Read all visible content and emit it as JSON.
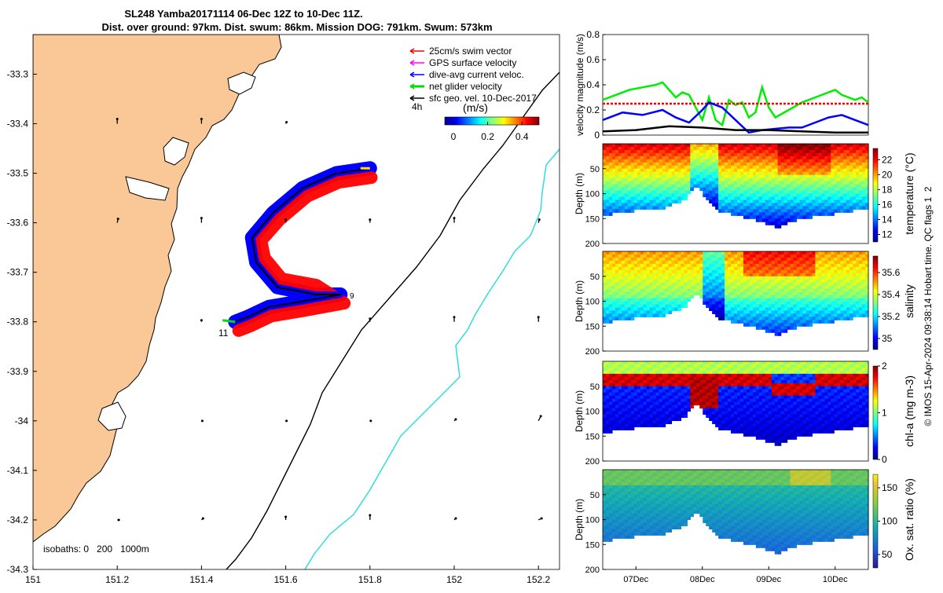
{
  "title": {
    "line1": "SL248 Yamba20171114 06-Dec 12Z to 10-Dec 11Z.",
    "line2": "Dist. over ground: 97km. Dist. swum: 86km. Mission DOG: 791km. Swum: 573km"
  },
  "map": {
    "xlim": [
      151.0,
      152.25
    ],
    "ylim": [
      -34.3,
      -33.22
    ],
    "x_ticks": [
      "151",
      "151.2",
      "151.4",
      "151.6",
      "151.8",
      "152",
      "152.2"
    ],
    "x_tick_values": [
      151.0,
      151.2,
      151.4,
      151.6,
      151.8,
      152.0,
      152.2
    ],
    "y_ticks": [
      "-33.3",
      "-33.4",
      "-33.5",
      "-33.6",
      "-33.7",
      "-33.8",
      "-33.9",
      "-34",
      "-34.1",
      "-34.2",
      "-34.3"
    ],
    "y_tick_values": [
      -33.3,
      -33.4,
      -33.5,
      -33.6,
      -33.7,
      -33.8,
      -33.9,
      -34.0,
      -34.1,
      -34.2,
      -34.3
    ],
    "colors": {
      "land": "#f9c896",
      "isobath_200": "#000000",
      "isobath_1000": "#22dddd",
      "swim": "#ff0000",
      "gps": "#ff00ff",
      "current": "#0000ff",
      "net": "#00dd00",
      "geo": "#000000"
    },
    "legend": [
      {
        "label": "25cm/s swim vector",
        "color": "#ff0000"
      },
      {
        "label": "GPS surface velocity",
        "color": "#ff00ff"
      },
      {
        "label": "dive-avg current veloc.",
        "color": "#0000ff"
      },
      {
        "label": "net glider velocity",
        "color": "#00dd00"
      },
      {
        "label": "sfc geo. vel. 10-Dec-2017",
        "color": "#000000"
      }
    ],
    "colorbar": {
      "label": "(m/s)",
      "ticks": [
        "0",
        "0.2",
        "0.4"
      ],
      "tick_values": [
        0,
        0.2,
        0.4
      ],
      "range": [
        -0.05,
        0.5
      ]
    },
    "speed_label": "4h",
    "isobath_text": "isobaths: 0   200   1000m",
    "track_labels": {
      "start": "11",
      "end": "9"
    },
    "track": [
      [
        151.8,
        -33.49
      ],
      [
        151.72,
        -33.5
      ],
      [
        151.64,
        -33.53
      ],
      [
        151.57,
        -33.58
      ],
      [
        151.52,
        -33.63
      ],
      [
        151.53,
        -33.68
      ],
      [
        151.58,
        -33.73
      ],
      [
        151.67,
        -33.745
      ],
      [
        151.73,
        -33.745
      ],
      [
        151.63,
        -33.76
      ],
      [
        151.56,
        -33.77
      ],
      [
        151.51,
        -33.79
      ],
      [
        151.48,
        -33.8
      ]
    ],
    "geo_vectors": [
      {
        "lon": 151.2,
        "lat": -33.4,
        "u": 0.0,
        "v": 0.3
      },
      {
        "lon": 151.4,
        "lat": -33.4,
        "u": 0.0,
        "v": 0.3
      },
      {
        "lon": 151.6,
        "lat": -33.4,
        "u": 0.05,
        "v": 0.1
      },
      {
        "lon": 151.2,
        "lat": -33.6,
        "u": 0.05,
        "v": 0.25
      },
      {
        "lon": 151.4,
        "lat": -33.6,
        "u": 0.0,
        "v": 0.3
      },
      {
        "lon": 151.6,
        "lat": -33.6,
        "u": 0.0,
        "v": 0.2
      },
      {
        "lon": 151.8,
        "lat": -33.6,
        "u": 0.0,
        "v": 0.2
      },
      {
        "lon": 152.0,
        "lat": -33.6,
        "u": 0.0,
        "v": 0.3
      },
      {
        "lon": 152.2,
        "lat": -33.6,
        "u": 0.05,
        "v": 0.2
      },
      {
        "lon": 151.4,
        "lat": -33.8,
        "u": 0.0,
        "v": 0.1
      },
      {
        "lon": 151.8,
        "lat": -33.8,
        "u": 0.0,
        "v": 0.2
      },
      {
        "lon": 152.0,
        "lat": -33.8,
        "u": 0.0,
        "v": 0.3
      },
      {
        "lon": 152.2,
        "lat": -33.8,
        "u": 0.0,
        "v": 0.3
      },
      {
        "lon": 151.4,
        "lat": -34.0,
        "u": 0.05,
        "v": 0.0
      },
      {
        "lon": 151.6,
        "lat": -34.0,
        "u": 0.05,
        "v": 0.0
      },
      {
        "lon": 151.8,
        "lat": -34.0,
        "u": 0.05,
        "v": 0.0
      },
      {
        "lon": 152.0,
        "lat": -34.0,
        "u": 0.1,
        "v": 0.1
      },
      {
        "lon": 152.2,
        "lat": -34.0,
        "u": 0.15,
        "v": 0.3
      },
      {
        "lon": 151.2,
        "lat": -34.2,
        "u": 0.1,
        "v": 0.0
      },
      {
        "lon": 151.4,
        "lat": -34.2,
        "u": 0.1,
        "v": 0.1
      },
      {
        "lon": 151.6,
        "lat": -34.2,
        "u": 0.0,
        "v": 0.2
      },
      {
        "lon": 151.8,
        "lat": -34.2,
        "u": 0.0,
        "v": 0.3
      },
      {
        "lon": 152.0,
        "lat": -34.2,
        "u": 0.1,
        "v": 0.1
      },
      {
        "lon": 152.2,
        "lat": -34.2,
        "u": 0.2,
        "v": 0.1
      }
    ]
  },
  "chart_data": [
    {
      "type": "line",
      "ylabel": "velocity magnitude (m/s)",
      "ylim": [
        0,
        0.8
      ],
      "y_ticks": [
        "0",
        "0.2",
        "0.4",
        "0.6",
        "0.8"
      ],
      "x_day": [
        0,
        4
      ],
      "series": [
        {
          "color": "#00ee00",
          "x": [
            0,
            0.2,
            0.4,
            0.6,
            0.8,
            0.9,
            1.0,
            1.1,
            1.2,
            1.3,
            1.4,
            1.5,
            1.6,
            1.7,
            1.8,
            1.9,
            2.0,
            2.1,
            2.2,
            2.3,
            2.4,
            2.5,
            2.6,
            2.8,
            3.0,
            3.2,
            3.4,
            3.5,
            3.6,
            3.7,
            3.8,
            3.9,
            4.0
          ],
          "values": [
            0.28,
            0.32,
            0.36,
            0.38,
            0.4,
            0.42,
            0.36,
            0.3,
            0.34,
            0.32,
            0.22,
            0.12,
            0.3,
            0.12,
            0.08,
            0.28,
            0.24,
            0.26,
            0.14,
            0.18,
            0.38,
            0.22,
            0.14,
            0.2,
            0.26,
            0.3,
            0.34,
            0.36,
            0.32,
            0.3,
            0.28,
            0.3,
            0.26
          ]
        },
        {
          "color": "#ff0000",
          "x": [
            0,
            4
          ],
          "values": [
            0.25,
            0.25
          ]
        },
        {
          "color": "#0000ff",
          "x": [
            0,
            0.3,
            0.6,
            0.9,
            1.1,
            1.3,
            1.5,
            1.6,
            1.8,
            2.0,
            2.2,
            2.4,
            2.6,
            2.8,
            3.0,
            3.2,
            3.4,
            3.6,
            3.8,
            4.0
          ],
          "values": [
            0.12,
            0.18,
            0.16,
            0.2,
            0.14,
            0.1,
            0.2,
            0.26,
            0.22,
            0.12,
            0.02,
            0.04,
            0.05,
            0.06,
            0.06,
            0.1,
            0.14,
            0.16,
            0.12,
            0.08
          ]
        },
        {
          "color": "#000000",
          "x": [
            0,
            0.5,
            1.0,
            1.5,
            2.0,
            2.5,
            3.0,
            3.5,
            4.0
          ],
          "values": [
            0.03,
            0.04,
            0.07,
            0.06,
            0.04,
            0.04,
            0.03,
            0.02,
            0.02
          ]
        }
      ]
    },
    {
      "type": "heatmap",
      "variable": "temperature",
      "ylabel": "Depth (m)",
      "colorbar_label": "temperature (°C)",
      "ylim": [
        0,
        200
      ],
      "y_ticks": [
        "50",
        "100",
        "150",
        "200"
      ],
      "clim": [
        11,
        23.5
      ],
      "colorbar_ticks": [
        "12",
        "14",
        "16",
        "18",
        "20",
        "22"
      ]
    },
    {
      "type": "heatmap",
      "variable": "salinity",
      "ylabel": "Depth (m)",
      "colorbar_label": "salinity",
      "ylim": [
        0,
        200
      ],
      "y_ticks": [
        "50",
        "100",
        "150",
        "200"
      ],
      "clim": [
        34.9,
        35.75
      ],
      "colorbar_ticks": [
        "35",
        "35.2",
        "35.4",
        "35.6"
      ]
    },
    {
      "type": "heatmap",
      "variable": "chl-a",
      "ylabel": "Depth (m)",
      "colorbar_label": "chl-a (mg m-3)",
      "ylim": [
        0,
        200
      ],
      "y_ticks": [
        "50",
        "100",
        "150",
        "200"
      ],
      "clim": [
        0,
        2
      ],
      "colorbar_ticks": [
        "0",
        "1",
        "2"
      ]
    },
    {
      "type": "heatmap",
      "variable": "oxygen",
      "ylabel": "Depth (m)",
      "colorbar_label": "Ox. sat. ratio (%)",
      "ylim": [
        0,
        200
      ],
      "y_ticks": [
        "50",
        "100",
        "150",
        "200"
      ],
      "clim": [
        30,
        170
      ],
      "colorbar_ticks": [
        "50",
        "100",
        "150"
      ],
      "x_ticks": [
        "07Dec",
        "08Dec",
        "09Dec",
        "10Dec"
      ]
    }
  ],
  "profiles": {
    "bottom_depth": [
      [
        0,
        140
      ],
      [
        0.5,
        130
      ],
      [
        0.9,
        125
      ],
      [
        1.2,
        110
      ],
      [
        1.4,
        80
      ],
      [
        1.5,
        100
      ],
      [
        1.7,
        130
      ],
      [
        2.0,
        140
      ],
      [
        2.3,
        150
      ],
      [
        2.6,
        165
      ],
      [
        2.9,
        150
      ],
      [
        3.3,
        140
      ],
      [
        3.6,
        135
      ],
      [
        4.0,
        125
      ]
    ]
  },
  "credit": "© IMOS 15-Apr-2024 09:38:14 Hobart time. QC flags 1  2"
}
